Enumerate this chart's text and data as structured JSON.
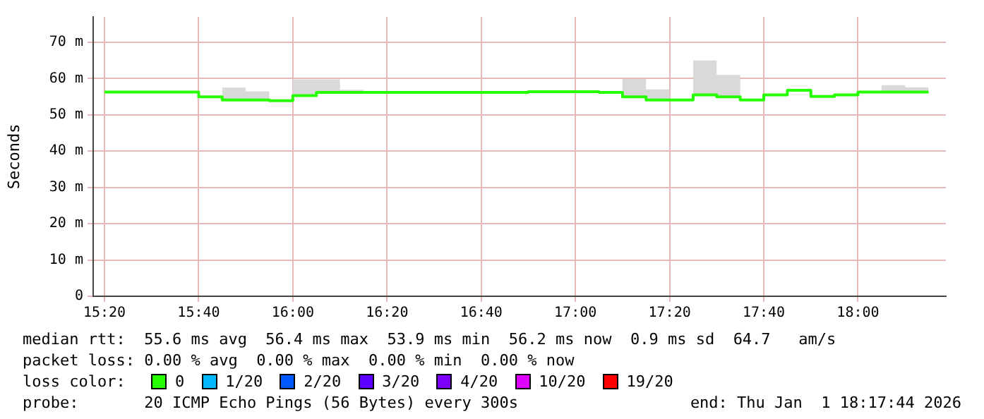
{
  "chart_data": {
    "type": "step",
    "ylabel": "Seconds",
    "x": [
      "2026-01-01T15:20",
      "2026-01-01T15:25",
      "2026-01-01T15:30",
      "2026-01-01T15:35",
      "2026-01-01T15:40",
      "2026-01-01T15:45",
      "2026-01-01T15:50",
      "2026-01-01T15:55",
      "2026-01-01T16:00",
      "2026-01-01T16:05",
      "2026-01-01T16:10",
      "2026-01-01T16:15",
      "2026-01-01T16:20",
      "2026-01-01T16:25",
      "2026-01-01T16:30",
      "2026-01-01T16:35",
      "2026-01-01T16:40",
      "2026-01-01T16:45",
      "2026-01-01T16:50",
      "2026-01-01T16:55",
      "2026-01-01T17:00",
      "2026-01-01T17:05",
      "2026-01-01T17:10",
      "2026-01-01T17:15",
      "2026-01-01T17:20",
      "2026-01-01T17:25",
      "2026-01-01T17:30",
      "2026-01-01T17:35",
      "2026-01-01T17:40",
      "2026-01-01T17:45",
      "2026-01-01T17:50",
      "2026-01-01T17:55",
      "2026-01-01T18:00",
      "2026-01-01T18:05",
      "2026-01-01T18:10",
      "2026-01-01T18:15"
    ],
    "series": [
      {
        "name": "0",
        "color": "#26ff00",
        "values": [
          56.3,
          56.3,
          56.3,
          56.3,
          56.3,
          55.0,
          54.1,
          54.1,
          53.9,
          55.3,
          56.2,
          56.2,
          56.2,
          56.2,
          56.2,
          56.2,
          56.2,
          56.2,
          56.2,
          56.4,
          56.4,
          56.4,
          56.2,
          55.0,
          54.1,
          54.1,
          55.5,
          55.0,
          54.1,
          55.5,
          56.8,
          55.1,
          55.5,
          56.3,
          56.3,
          56.3
        ],
        "lower": [
          56.3,
          56.3,
          56.3,
          56.3,
          56.3,
          55.0,
          54.1,
          54.1,
          53.9,
          55.3,
          56.2,
          56.2,
          56.2,
          56.2,
          56.2,
          56.2,
          56.2,
          56.2,
          56.2,
          56.4,
          56.4,
          56.4,
          56.2,
          55.0,
          54.1,
          54.1,
          55.5,
          55.0,
          54.1,
          55.5,
          56.8,
          55.1,
          55.5,
          56.3,
          56.3,
          56.3
        ],
        "upper": [
          56.3,
          56.3,
          56.3,
          56.3,
          56.3,
          55.0,
          57.5,
          56.5,
          53.9,
          59.8,
          59.8,
          56.9,
          56.2,
          56.2,
          56.2,
          56.2,
          56.2,
          56.2,
          56.2,
          56.4,
          56.4,
          56.4,
          56.2,
          59.9,
          57.0,
          54.1,
          65.0,
          61.0,
          54.1,
          55.5,
          56.8,
          55.1,
          55.5,
          56.3,
          58.2,
          57.6
        ]
      },
      {
        "name": "1/20",
        "color": "#00b8ff",
        "values": [
          null,
          null,
          null,
          null,
          null,
          null,
          null,
          null,
          null,
          null,
          null,
          null,
          null,
          null,
          null,
          null,
          null,
          null,
          null,
          null,
          null,
          null,
          null,
          null,
          null,
          null,
          null,
          null,
          null,
          null,
          null,
          null,
          null,
          null,
          null,
          null
        ]
      },
      {
        "name": "2/20",
        "color": "#0059ff",
        "values": [
          null,
          null,
          null,
          null,
          null,
          null,
          null,
          null,
          null,
          null,
          null,
          null,
          null,
          null,
          null,
          null,
          null,
          null,
          null,
          null,
          null,
          null,
          null,
          null,
          null,
          null,
          null,
          null,
          null,
          null,
          null,
          null,
          null,
          null,
          null,
          null
        ]
      },
      {
        "name": "3/20",
        "color": "#5e00ff",
        "values": [
          null,
          null,
          null,
          null,
          null,
          null,
          null,
          null,
          null,
          null,
          null,
          null,
          null,
          null,
          null,
          null,
          null,
          null,
          null,
          null,
          null,
          null,
          null,
          null,
          null,
          null,
          null,
          null,
          null,
          null,
          null,
          null,
          null,
          null,
          null,
          null
        ]
      },
      {
        "name": "4/20",
        "color": "#7e00ff",
        "values": [
          null,
          null,
          null,
          null,
          null,
          null,
          null,
          null,
          null,
          null,
          null,
          null,
          null,
          null,
          null,
          null,
          null,
          null,
          null,
          null,
          null,
          null,
          null,
          null,
          null,
          null,
          null,
          null,
          null,
          null,
          null,
          null,
          null,
          null,
          null,
          null
        ]
      },
      {
        "name": "10/20",
        "color": "#dd00ff",
        "values": [
          null,
          null,
          null,
          null,
          null,
          null,
          null,
          null,
          null,
          null,
          null,
          null,
          null,
          null,
          null,
          null,
          null,
          null,
          null,
          null,
          null,
          null,
          null,
          null,
          null,
          null,
          null,
          null,
          null,
          null,
          null,
          null,
          null,
          null,
          null,
          null
        ]
      },
      {
        "name": "19/20",
        "color": "#ff0000",
        "values": [
          null,
          null,
          null,
          null,
          null,
          null,
          null,
          null,
          null,
          null,
          null,
          null,
          null,
          null,
          null,
          null,
          null,
          null,
          null,
          null,
          null,
          null,
          null,
          null,
          null,
          null,
          null,
          null,
          null,
          null,
          null,
          null,
          null,
          null,
          null,
          null
        ]
      }
    ],
    "xlim": [
      "2026-01-01T15:17:36",
      "2026-01-01T18:18:40"
    ],
    "xticks": [
      {
        "value": "2026-01-01T15:20",
        "label": "15:20"
      },
      {
        "value": "2026-01-01T15:40",
        "label": "15:40"
      },
      {
        "value": "2026-01-01T16:00",
        "label": "16:00"
      },
      {
        "value": "2026-01-01T16:20",
        "label": "16:20"
      },
      {
        "value": "2026-01-01T16:40",
        "label": "16:40"
      },
      {
        "value": "2026-01-01T17:00",
        "label": "17:00"
      },
      {
        "value": "2026-01-01T17:20",
        "label": "17:20"
      },
      {
        "value": "2026-01-01T17:40",
        "label": "17:40"
      },
      {
        "value": "2026-01-01T18:00",
        "label": "18:00"
      }
    ],
    "ylim": [
      0,
      77
    ],
    "yticks": [
      0,
      {
        "value": 10,
        "label": "10 m"
      },
      {
        "value": 20,
        "label": "20 m"
      },
      {
        "value": 30,
        "label": "30 m"
      },
      {
        "value": 40,
        "label": "40 m"
      },
      {
        "value": 50,
        "label": "50 m"
      },
      {
        "value": 60,
        "label": "60 m"
      },
      {
        "value": 70,
        "label": "70 m"
      }
    ],
    "grid": true,
    "legend": "bottom",
    "legend_title": "loss color:",
    "annotations": [
      "median rtt:  55.6 ms avg  56.4 ms max  53.9 ms min  56.2 ms now  0.9 ms sd  64.7   am/s",
      "packet loss: 0.00 % avg  0.00 % max  0.00 % min  0.00 % now",
      "probe:       20 ICMP Echo Pings (56 Bytes) every 300s",
      "end: Thu Jan  1 18:17:44 2026"
    ]
  }
}
